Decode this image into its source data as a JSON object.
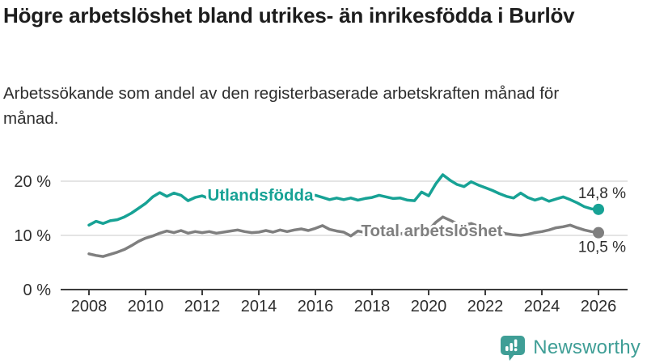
{
  "header": {
    "title": "Högre arbetslöshet bland utrikes- än inrikesfödda i Burlöv",
    "subtitle": "Arbetssökande som andel av den registerbaserade arbetskraften månad för månad."
  },
  "chart_data": {
    "type": "line",
    "x_unit": "year",
    "x_start": 2008,
    "x_step": 0.25,
    "xlim": [
      2007,
      2027
    ],
    "ylim": [
      0,
      22
    ],
    "grid": "horizontal",
    "xticks": [
      2008,
      2010,
      2012,
      2014,
      2016,
      2018,
      2020,
      2022,
      2024,
      2026
    ],
    "yticks": [
      {
        "value": 0,
        "label": "0 %"
      },
      {
        "value": 10,
        "label": "10 %"
      },
      {
        "value": 20,
        "label": "20 %"
      }
    ],
    "series": [
      {
        "name": "Utlandsfödda",
        "slug": "utlandsfodda",
        "color": "#17a295",
        "end_label": "14,8 %",
        "end_value": 14.8,
        "values": [
          11.9,
          12.6,
          12.2,
          12.7,
          12.9,
          13.4,
          14.1,
          15.0,
          15.9,
          17.1,
          17.9,
          17.2,
          17.8,
          17.4,
          16.4,
          17.0,
          17.3,
          16.8,
          17.2,
          17.5,
          17.4,
          17.0,
          16.7,
          17.2,
          16.6,
          16.9,
          16.4,
          16.8,
          16.6,
          17.0,
          16.7,
          17.1,
          17.4,
          17.0,
          16.6,
          16.9,
          16.6,
          16.9,
          16.5,
          16.8,
          17.0,
          17.4,
          17.1,
          16.8,
          16.9,
          16.5,
          16.4,
          18.0,
          17.3,
          19.5,
          21.2,
          20.2,
          19.4,
          19.0,
          19.9,
          19.3,
          18.8,
          18.3,
          17.7,
          17.2,
          16.9,
          17.8,
          17.0,
          16.5,
          16.9,
          16.3,
          16.7,
          17.1,
          16.6,
          16.0,
          15.3,
          14.9,
          14.8
        ]
      },
      {
        "name": "Total arbetslöshet",
        "slug": "total-arbetsloshet",
        "color": "#7f7f7f",
        "end_label": "10,5 %",
        "end_value": 10.5,
        "values": [
          6.6,
          6.3,
          6.1,
          6.5,
          6.9,
          7.4,
          8.1,
          8.9,
          9.5,
          9.9,
          10.4,
          10.8,
          10.5,
          10.9,
          10.4,
          10.7,
          10.5,
          10.7,
          10.4,
          10.6,
          10.8,
          11.0,
          10.7,
          10.5,
          10.6,
          10.9,
          10.6,
          11.0,
          10.7,
          11.0,
          11.2,
          10.9,
          11.3,
          11.8,
          11.1,
          10.8,
          10.6,
          9.9,
          10.8,
          10.5,
          10.7,
          10.9,
          10.6,
          10.4,
          10.3,
          10.5,
          10.3,
          10.6,
          11.0,
          12.4,
          13.4,
          12.8,
          12.2,
          11.9,
          12.2,
          11.7,
          11.3,
          10.9,
          10.6,
          10.3,
          10.1,
          10.0,
          10.2,
          10.5,
          10.7,
          11.0,
          11.4,
          11.6,
          11.9,
          11.4,
          11.0,
          10.7,
          10.5
        ]
      }
    ]
  },
  "footer": {
    "brand": "Newsworthy"
  },
  "colors": {
    "accent_teal": "#17a295",
    "series_gray": "#7f7f7f",
    "logo_teal": "#3f9e96",
    "gridline": "#dcdcdc",
    "axis": "#3c3c3c"
  }
}
